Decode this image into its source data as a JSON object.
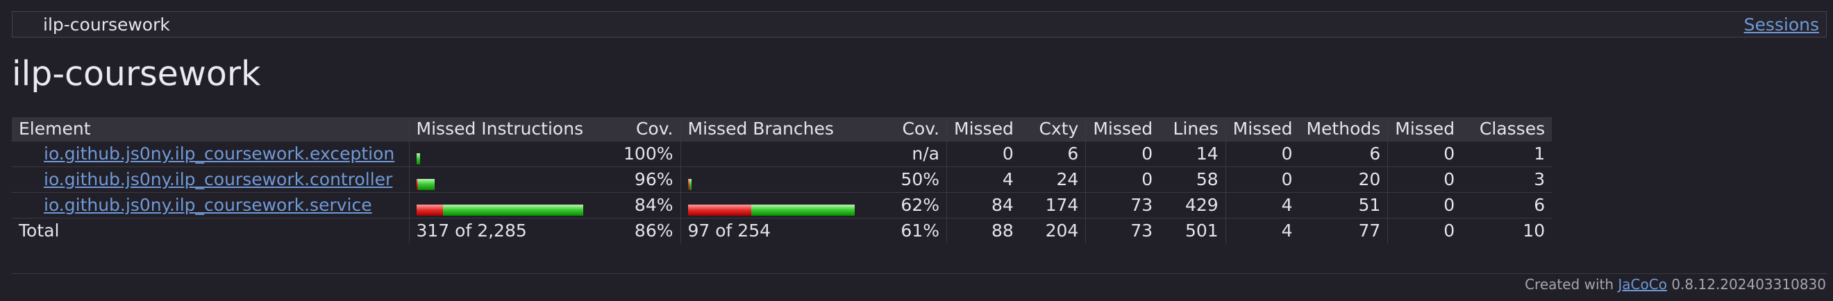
{
  "breadcrumb": {
    "report": "ilp-coursework",
    "sessions": "Sessions"
  },
  "title": "ilp-coursework",
  "table": {
    "headers": [
      "Element",
      "Missed Instructions",
      "Cov.",
      "Missed Branches",
      "Cov.",
      "Missed",
      "Cxty",
      "Missed",
      "Lines",
      "Missed",
      "Methods",
      "Missed",
      "Classes"
    ],
    "rows": [
      {
        "element": "io.github.js0ny.ilp_coursework.exception",
        "instr_missed_fraction": 0.0,
        "instr_covered_fraction": 0.02,
        "instr_cov": "100%",
        "br_missed_fraction": 0.0,
        "br_covered_fraction": 0.0,
        "br_cov": "n/a",
        "cxty_missed": "0",
        "cxty": "6",
        "lines_missed": "0",
        "lines": "14",
        "methods_missed": "0",
        "methods": "6",
        "classes_missed": "0",
        "classes": "1"
      },
      {
        "element": "io.github.js0ny.ilp_coursework.controller",
        "instr_missed_fraction": 0.005,
        "instr_covered_fraction": 0.1,
        "instr_cov": "96%",
        "br_missed_fraction": 0.005,
        "br_covered_fraction": 0.005,
        "br_cov": "50%",
        "cxty_missed": "4",
        "cxty": "24",
        "lines_missed": "0",
        "lines": "58",
        "methods_missed": "0",
        "methods": "20",
        "classes_missed": "0",
        "classes": "3"
      },
      {
        "element": "io.github.js0ny.ilp_coursework.service",
        "instr_missed_fraction": 0.16,
        "instr_covered_fraction": 0.84,
        "instr_cov": "84%",
        "br_missed_fraction": 0.38,
        "br_covered_fraction": 0.62,
        "br_cov": "62%",
        "cxty_missed": "84",
        "cxty": "174",
        "lines_missed": "73",
        "lines": "429",
        "methods_missed": "4",
        "methods": "51",
        "classes_missed": "0",
        "classes": "6"
      }
    ],
    "total": {
      "label": "Total",
      "instr": "317 of 2,285",
      "instr_cov": "86%",
      "br": "97 of 254",
      "br_cov": "61%",
      "cxty_missed": "88",
      "cxty": "204",
      "lines_missed": "73",
      "lines": "501",
      "methods_missed": "4",
      "methods": "77",
      "classes_missed": "0",
      "classes": "10"
    }
  },
  "footer": {
    "prefix": "Created with",
    "link": "JaCoCo",
    "version": "0.8.12.202403310830"
  },
  "colors": {
    "background": "#211f27",
    "link": "#6f9ad8",
    "bar_missed": "#e42a2a",
    "bar_covered": "#35c82d"
  }
}
